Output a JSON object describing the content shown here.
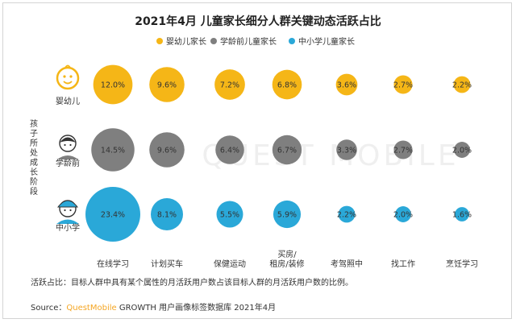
{
  "chart_data": {
    "type": "bubble",
    "title": "2021年4月 儿童家长细分人群关键动态活跃占比",
    "legend_position": "top-center",
    "y_axis_label": "孩子所处成长阶段",
    "categories": [
      "在线学习",
      "计划买车",
      "保健运动",
      "买房/租房/装修",
      "考驾照中",
      "找工作",
      "烹饪学习"
    ],
    "category_lines": [
      [
        "在线学习"
      ],
      [
        "计划买车"
      ],
      [
        "保健运动"
      ],
      [
        "买房/",
        "租房/装修"
      ],
      [
        "考驾照中"
      ],
      [
        "找工作"
      ],
      [
        "烹饪学习"
      ]
    ],
    "series": [
      {
        "name": "婴幼儿家长",
        "row_label": "婴幼儿",
        "color": "#f5b617",
        "values": [
          12.0,
          9.6,
          7.2,
          6.8,
          3.6,
          2.7,
          2.2
        ],
        "labels": [
          "12.0%",
          "9.6%",
          "7.2%",
          "6.8%",
          "3.6%",
          "2.7%",
          "2.2%"
        ]
      },
      {
        "name": "学龄前儿童家长",
        "row_label": "学龄前",
        "color": "#7f7f7f",
        "values": [
          14.5,
          9.6,
          6.4,
          6.7,
          3.3,
          2.7,
          2.0
        ],
        "labels": [
          "14.5%",
          "9.6%",
          "6.4%",
          "6.7%",
          "3.3%",
          "2.7%",
          "2.0%"
        ]
      },
      {
        "name": "中小学儿童家长",
        "row_label": "中小学",
        "color": "#2aa8d8",
        "values": [
          23.4,
          8.1,
          5.5,
          5.9,
          2.2,
          2.0,
          1.6
        ],
        "labels": [
          "23.4%",
          "8.1%",
          "5.5%",
          "5.9%",
          "2.2%",
          "2.0%",
          "1.6%"
        ]
      }
    ],
    "note": "活跃占比：目标人群中具有某个属性的月活跃用户数占该目标人群的月活跃用户数的比例。",
    "source_prefix": "Source：",
    "source_brand": "QuestMobile",
    "source_rest": " GROWTH 用户画像标签数据库 2021年4月",
    "watermark": "QUEST MOBILE"
  }
}
